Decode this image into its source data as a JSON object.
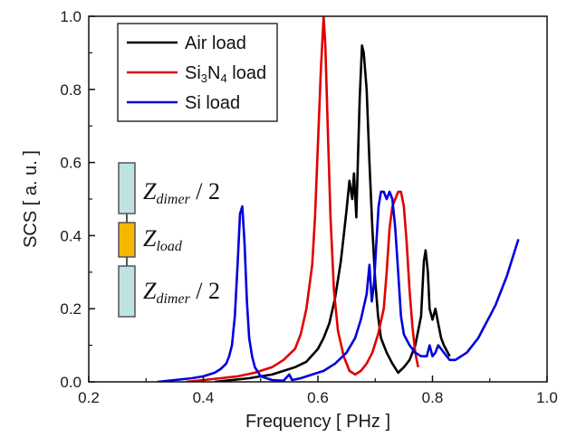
{
  "chart_data": {
    "type": "line",
    "xlabel": "Frequency [ PHz ]",
    "ylabel": "SCS [ a. u. ]",
    "xlim": [
      0.2,
      1.0
    ],
    "ylim": [
      0.0,
      1.0
    ],
    "xticks": [
      "0.2",
      "0.4",
      "0.6",
      "0.8",
      "1.0"
    ],
    "yticks": [
      "0.0",
      "0.2",
      "0.4",
      "0.6",
      "0.8",
      "1.0"
    ],
    "grid": false,
    "legend_position": "top-center",
    "series": [
      {
        "name": "Air load",
        "color": "#000000",
        "points": [
          [
            0.42,
            0.0
          ],
          [
            0.45,
            0.005
          ],
          [
            0.48,
            0.01
          ],
          [
            0.5,
            0.015
          ],
          [
            0.52,
            0.02
          ],
          [
            0.54,
            0.03
          ],
          [
            0.56,
            0.04
          ],
          [
            0.58,
            0.055
          ],
          [
            0.6,
            0.09
          ],
          [
            0.61,
            0.12
          ],
          [
            0.62,
            0.16
          ],
          [
            0.63,
            0.23
          ],
          [
            0.64,
            0.33
          ],
          [
            0.645,
            0.4
          ],
          [
            0.65,
            0.47
          ],
          [
            0.655,
            0.55
          ],
          [
            0.66,
            0.5
          ],
          [
            0.663,
            0.57
          ],
          [
            0.667,
            0.45
          ],
          [
            0.67,
            0.62
          ],
          [
            0.673,
            0.78
          ],
          [
            0.677,
            0.92
          ],
          [
            0.68,
            0.9
          ],
          [
            0.685,
            0.8
          ],
          [
            0.69,
            0.6
          ],
          [
            0.695,
            0.42
          ],
          [
            0.7,
            0.28
          ],
          [
            0.705,
            0.18
          ],
          [
            0.71,
            0.12
          ],
          [
            0.72,
            0.08
          ],
          [
            0.73,
            0.05
          ],
          [
            0.74,
            0.025
          ],
          [
            0.75,
            0.04
          ],
          [
            0.76,
            0.06
          ],
          [
            0.77,
            0.1
          ],
          [
            0.78,
            0.18
          ],
          [
            0.785,
            0.33
          ],
          [
            0.788,
            0.36
          ],
          [
            0.792,
            0.3
          ],
          [
            0.795,
            0.2
          ],
          [
            0.8,
            0.17
          ],
          [
            0.805,
            0.2
          ],
          [
            0.81,
            0.16
          ],
          [
            0.815,
            0.12
          ],
          [
            0.82,
            0.1
          ],
          [
            0.83,
            0.07
          ]
        ]
      },
      {
        "name": "Si3N4 load",
        "color": "#e00000",
        "points": [
          [
            0.37,
            0.0
          ],
          [
            0.4,
            0.005
          ],
          [
            0.43,
            0.01
          ],
          [
            0.46,
            0.015
          ],
          [
            0.49,
            0.025
          ],
          [
            0.52,
            0.04
          ],
          [
            0.54,
            0.06
          ],
          [
            0.56,
            0.09
          ],
          [
            0.57,
            0.13
          ],
          [
            0.58,
            0.2
          ],
          [
            0.59,
            0.32
          ],
          [
            0.595,
            0.45
          ],
          [
            0.6,
            0.65
          ],
          [
            0.605,
            0.85
          ],
          [
            0.61,
            1.0
          ],
          [
            0.613,
            0.92
          ],
          [
            0.617,
            0.7
          ],
          [
            0.622,
            0.45
          ],
          [
            0.628,
            0.25
          ],
          [
            0.635,
            0.14
          ],
          [
            0.645,
            0.07
          ],
          [
            0.655,
            0.03
          ],
          [
            0.665,
            0.02
          ],
          [
            0.675,
            0.03
          ],
          [
            0.685,
            0.05
          ],
          [
            0.695,
            0.08
          ],
          [
            0.705,
            0.13
          ],
          [
            0.715,
            0.2
          ],
          [
            0.72,
            0.3
          ],
          [
            0.725,
            0.42
          ],
          [
            0.73,
            0.48
          ],
          [
            0.735,
            0.5
          ],
          [
            0.74,
            0.52
          ],
          [
            0.745,
            0.52
          ],
          [
            0.75,
            0.48
          ],
          [
            0.755,
            0.38
          ],
          [
            0.76,
            0.25
          ],
          [
            0.765,
            0.15
          ],
          [
            0.77,
            0.08
          ],
          [
            0.775,
            0.04
          ]
        ]
      },
      {
        "name": "Si load",
        "color": "#0000dd",
        "points": [
          [
            0.32,
            0.0
          ],
          [
            0.35,
            0.005
          ],
          [
            0.38,
            0.01
          ],
          [
            0.4,
            0.015
          ],
          [
            0.42,
            0.025
          ],
          [
            0.43,
            0.035
          ],
          [
            0.44,
            0.05
          ],
          [
            0.445,
            0.07
          ],
          [
            0.45,
            0.1
          ],
          [
            0.455,
            0.18
          ],
          [
            0.46,
            0.33
          ],
          [
            0.464,
            0.46
          ],
          [
            0.468,
            0.48
          ],
          [
            0.472,
            0.38
          ],
          [
            0.476,
            0.22
          ],
          [
            0.48,
            0.12
          ],
          [
            0.485,
            0.07
          ],
          [
            0.49,
            0.04
          ],
          [
            0.5,
            0.015
          ],
          [
            0.52,
            0.005
          ],
          [
            0.54,
            0.003
          ],
          [
            0.55,
            0.02
          ],
          [
            0.555,
            0.005
          ],
          [
            0.57,
            0.01
          ],
          [
            0.59,
            0.02
          ],
          [
            0.61,
            0.03
          ],
          [
            0.63,
            0.05
          ],
          [
            0.65,
            0.08
          ],
          [
            0.665,
            0.12
          ],
          [
            0.675,
            0.17
          ],
          [
            0.685,
            0.24
          ],
          [
            0.69,
            0.32
          ],
          [
            0.694,
            0.22
          ],
          [
            0.698,
            0.27
          ],
          [
            0.702,
            0.38
          ],
          [
            0.706,
            0.48
          ],
          [
            0.71,
            0.52
          ],
          [
            0.715,
            0.52
          ],
          [
            0.72,
            0.5
          ],
          [
            0.725,
            0.52
          ],
          [
            0.73,
            0.5
          ],
          [
            0.735,
            0.42
          ],
          [
            0.74,
            0.3
          ],
          [
            0.745,
            0.18
          ],
          [
            0.75,
            0.13
          ],
          [
            0.76,
            0.1
          ],
          [
            0.77,
            0.08
          ],
          [
            0.78,
            0.07
          ],
          [
            0.79,
            0.07
          ],
          [
            0.795,
            0.1
          ],
          [
            0.8,
            0.07
          ],
          [
            0.805,
            0.08
          ],
          [
            0.81,
            0.1
          ],
          [
            0.815,
            0.09
          ],
          [
            0.82,
            0.08
          ],
          [
            0.83,
            0.06
          ],
          [
            0.84,
            0.06
          ],
          [
            0.85,
            0.07
          ],
          [
            0.86,
            0.08
          ],
          [
            0.87,
            0.1
          ],
          [
            0.88,
            0.12
          ],
          [
            0.89,
            0.15
          ],
          [
            0.9,
            0.18
          ],
          [
            0.91,
            0.21
          ],
          [
            0.92,
            0.25
          ],
          [
            0.93,
            0.29
          ],
          [
            0.94,
            0.34
          ],
          [
            0.95,
            0.39
          ]
        ]
      }
    ],
    "legend_entries": [
      {
        "base": "Air load",
        "color": "#000000"
      },
      {
        "parts": [
          {
            "t": "Si",
            "s": ""
          },
          {
            "t": "3",
            "s": "sub"
          },
          {
            "t": "N",
            "s": ""
          },
          {
            "t": "4",
            "s": "sub"
          },
          {
            "t": " load",
            "s": ""
          }
        ],
        "color": "#e00000"
      },
      {
        "base": "Si load",
        "color": "#0000dd"
      }
    ],
    "inset_circuit": {
      "labels": [
        {
          "main": "Z",
          "sub": "dimer",
          "tail": " / 2"
        },
        {
          "main": "Z",
          "sub": "load",
          "tail": ""
        },
        {
          "main": "Z",
          "sub": "dimer",
          "tail": " / 2"
        }
      ],
      "colors": {
        "dimer": "#bfe3e3",
        "load": "#f5b800",
        "wire": "#555555"
      }
    }
  }
}
